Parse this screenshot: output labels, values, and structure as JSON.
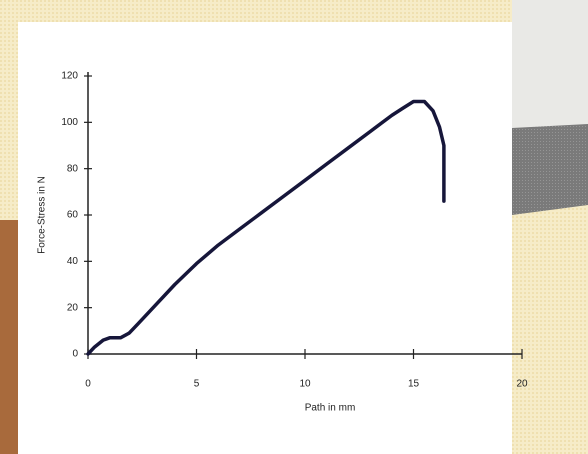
{
  "chart_data": {
    "type": "line",
    "xlabel": "Path in mm",
    "ylabel": "Force-Stress in N",
    "x": [
      0,
      0.3,
      0.7,
      1.0,
      1.5,
      1.9,
      2.3,
      3,
      4,
      5,
      6,
      7,
      8,
      9,
      10,
      11,
      12,
      13,
      14,
      14.5,
      15,
      15.5,
      15.9,
      16.2,
      16.4,
      16.4
    ],
    "values": [
      0,
      3,
      6,
      7,
      7,
      9,
      13,
      20,
      30,
      39,
      47,
      54,
      61,
      68,
      75,
      82,
      89,
      96,
      103,
      106,
      109,
      109,
      105,
      98,
      90,
      66
    ],
    "color": "#16163a",
    "xlim": [
      0,
      20
    ],
    "xticks": [
      0,
      5,
      10,
      15,
      20
    ],
    "ylim": [
      0,
      120
    ],
    "yticks": [
      0,
      20,
      40,
      60,
      80,
      100,
      120
    ]
  }
}
